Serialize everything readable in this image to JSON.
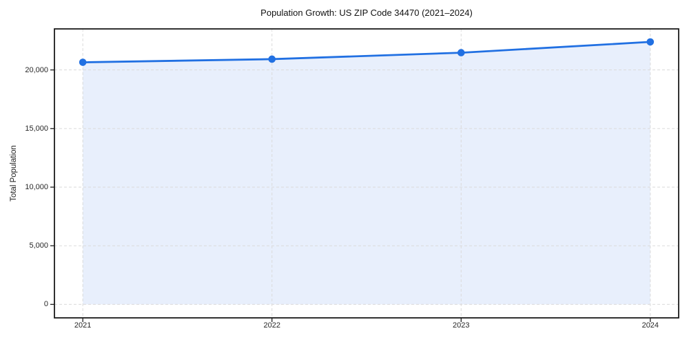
{
  "chart_data": {
    "type": "area",
    "title": "Population Growth: US ZIP Code 34470 (2021–2024)",
    "xlabel": "",
    "ylabel": "Total Population",
    "x": [
      2021,
      2022,
      2023,
      2024
    ],
    "series": [
      {
        "name": "Total Population",
        "values": [
          20650,
          20920,
          21470,
          22390
        ]
      }
    ],
    "xticks": [
      2021,
      2022,
      2023,
      2024
    ],
    "xtick_labels": [
      "2021",
      "2022",
      "2023",
      "2024"
    ],
    "yticks": [
      0,
      5000,
      10000,
      15000,
      20000
    ],
    "ytick_labels": [
      "0",
      "5,000",
      "10,000",
      "15,000",
      "20,000"
    ],
    "xlim": [
      2020.85,
      2024.15
    ],
    "ylim": [
      -1150,
      23500
    ],
    "grid": true,
    "legend": false,
    "marker": "circle",
    "colors": {
      "line": "#2170e2",
      "fill": "#e8effc",
      "grid": "#dadada",
      "spine": "#1a1a1a",
      "text": "#262626"
    }
  }
}
